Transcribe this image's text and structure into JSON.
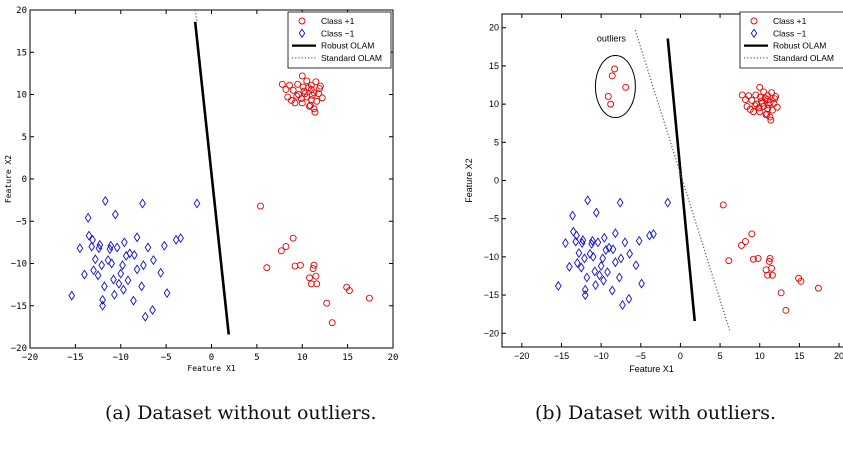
{
  "captions": {
    "a": "(a) Dataset without outliers.",
    "b": "(b) Dataset with outliers."
  },
  "chart_data": [
    {
      "type": "scatter",
      "title": "",
      "xlabel": "Feature X1",
      "ylabel": "Feature X2",
      "xlim": [
        -20,
        20
      ],
      "ylim": [
        -20,
        20
      ],
      "xticks": [
        -20,
        -15,
        -10,
        -5,
        0,
        5,
        10,
        15,
        20
      ],
      "yticks": [
        -20,
        -15,
        -10,
        -5,
        0,
        5,
        10,
        15,
        20
      ],
      "grid": false,
      "legend_position": "top-right",
      "colors": {
        "pos": "#e00000",
        "neg": "#1010cc",
        "line": "#000000",
        "dotted": "#777777"
      },
      "series": [
        {
          "name": "Class +1",
          "marker": "circle",
          "color": "#e00000",
          "points": [
            [
              9.5,
              11.2
            ],
            [
              10,
              12.2
            ],
            [
              10.5,
              11.6
            ],
            [
              11,
              11.1
            ],
            [
              11.5,
              11.5
            ],
            [
              12,
              11
            ],
            [
              9,
              10.5
            ],
            [
              10.2,
              10.4
            ],
            [
              10.7,
              10.8
            ],
            [
              11.3,
              10.2
            ],
            [
              11.8,
              10.1
            ],
            [
              9.4,
              9.8
            ],
            [
              9.9,
              9.5
            ],
            [
              10.5,
              9.7
            ],
            [
              11,
              9.4
            ],
            [
              11.6,
              9.2
            ],
            [
              9.2,
              9
            ],
            [
              10,
              9
            ],
            [
              10.8,
              8.6
            ],
            [
              11.3,
              8.3
            ],
            [
              8.2,
              10.6
            ],
            [
              8.6,
              11.1
            ],
            [
              12.2,
              9.6
            ],
            [
              9.6,
              10
            ],
            [
              10.3,
              10.1
            ],
            [
              11.1,
              9.9
            ],
            [
              8.8,
              9.3
            ],
            [
              11.4,
              7.9
            ],
            [
              10.9,
              8.7
            ],
            [
              11.9,
              10.7
            ],
            [
              10.1,
              10.9
            ],
            [
              11,
              10.6
            ],
            [
              7.8,
              11.2
            ],
            [
              8.4,
              9.7
            ],
            [
              5.4,
              -3.2
            ],
            [
              6.1,
              -10.5
            ],
            [
              7.7,
              -8.5
            ],
            [
              8.2,
              -8
            ],
            [
              9,
              -7
            ],
            [
              9.2,
              -10.3
            ],
            [
              9.8,
              -10.2
            ],
            [
              10.8,
              -11.7
            ],
            [
              11.3,
              -10.2
            ],
            [
              11.5,
              -11.5
            ],
            [
              11.6,
              -12.4
            ],
            [
              11,
              -12.4
            ],
            [
              11.2,
              -10.6
            ],
            [
              12.7,
              -14.7
            ],
            [
              13.3,
              -17
            ],
            [
              14.9,
              -12.8
            ],
            [
              15.2,
              -13.2
            ],
            [
              17.4,
              -14.1
            ]
          ]
        },
        {
          "name": "Class −1",
          "marker": "diamond",
          "color": "#1010cc",
          "points": [
            [
              -15.4,
              -13.8
            ],
            [
              -14.5,
              -8.2
            ],
            [
              -14,
              -11.3
            ],
            [
              -13.5,
              -6.7
            ],
            [
              -13.6,
              -4.6
            ],
            [
              -13.2,
              -8
            ],
            [
              -13,
              -10.8
            ],
            [
              -12.8,
              -9.5
            ],
            [
              -12.5,
              -11.4
            ],
            [
              -12.4,
              -8.2
            ],
            [
              -12.1,
              -10.2
            ],
            [
              -12,
              -14.3
            ],
            [
              -12,
              -15
            ],
            [
              -11.8,
              -12.7
            ],
            [
              -11.7,
              -2.6
            ],
            [
              -11.4,
              -9.6
            ],
            [
              -11.1,
              -7.9
            ],
            [
              -11,
              -10
            ],
            [
              -10.7,
              -13.7
            ],
            [
              -10.4,
              -8.1
            ],
            [
              -10.6,
              -4.2
            ],
            [
              -10.2,
              -12.4
            ],
            [
              -10,
              -11.2
            ],
            [
              -9.8,
              -10.2
            ],
            [
              -9.7,
              -13.1
            ],
            [
              -9.4,
              -9.1
            ],
            [
              -9.2,
              -12
            ],
            [
              -9,
              -8.8
            ],
            [
              -8.6,
              -14.4
            ],
            [
              -8.5,
              -9
            ],
            [
              -8.2,
              -10.7
            ],
            [
              -8.2,
              -6.9
            ],
            [
              -7.7,
              -12.7
            ],
            [
              -7.5,
              -10.2
            ],
            [
              -7.6,
              -2.9
            ],
            [
              -7.3,
              -16.3
            ],
            [
              -7,
              -8.1
            ],
            [
              -6.5,
              -15.5
            ],
            [
              -6.4,
              -9.6
            ],
            [
              -5.6,
              -11.1
            ],
            [
              -5.2,
              -7.9
            ],
            [
              -4.9,
              -13.5
            ],
            [
              -3.9,
              -7.2
            ],
            [
              -3.4,
              -7
            ],
            [
              -1.6,
              -2.9
            ],
            [
              -12.3,
              -7.8
            ],
            [
              -11.2,
              -8.3
            ],
            [
              -13.1,
              -7.2
            ],
            [
              -9.6,
              -7.5
            ],
            [
              -10.8,
              -11.9
            ]
          ]
        }
      ],
      "lines": [
        {
          "name": "Robust OLAM",
          "style": "solid",
          "x": [
            -1.8,
            1.9
          ],
          "y": [
            18.6,
            -18.4
          ]
        },
        {
          "name": "Standard OLAM",
          "style": "dotted",
          "x": [
            -1.8,
            -1.6
          ],
          "y": [
            20,
            18.6
          ]
        }
      ]
    },
    {
      "type": "scatter",
      "title": "",
      "xlabel": "Feature X1",
      "ylabel": "Feature X2",
      "xlim": [
        -22.5,
        20.5
      ],
      "ylim": [
        -21.8,
        21.8
      ],
      "xticks": [
        -20,
        -15,
        -10,
        -5,
        0,
        5,
        10,
        15,
        20
      ],
      "yticks": [
        -20,
        -15,
        -10,
        -5,
        0,
        5,
        10,
        15,
        20
      ],
      "grid": false,
      "legend_position": "top-right",
      "annotation": "outliers",
      "series": [
        {
          "name": "Class +1",
          "marker": "circle",
          "color": "#e00000",
          "points": [
            [
              9.5,
              11.2
            ],
            [
              10,
              12.2
            ],
            [
              10.5,
              11.6
            ],
            [
              11,
              11.1
            ],
            [
              11.5,
              11.5
            ],
            [
              12,
              11
            ],
            [
              9,
              10.5
            ],
            [
              10.2,
              10.4
            ],
            [
              10.7,
              10.8
            ],
            [
              11.3,
              10.2
            ],
            [
              11.8,
              10.1
            ],
            [
              9.4,
              9.8
            ],
            [
              9.9,
              9.5
            ],
            [
              10.5,
              9.7
            ],
            [
              11,
              9.4
            ],
            [
              11.6,
              9.2
            ],
            [
              9.2,
              9
            ],
            [
              10,
              9
            ],
            [
              10.8,
              8.6
            ],
            [
              11.3,
              8.3
            ],
            [
              8.2,
              10.6
            ],
            [
              8.6,
              11.1
            ],
            [
              12.2,
              9.6
            ],
            [
              9.6,
              10
            ],
            [
              10.3,
              10.1
            ],
            [
              11.1,
              9.9
            ],
            [
              8.8,
              9.3
            ],
            [
              11.4,
              7.9
            ],
            [
              10.9,
              8.7
            ],
            [
              11.9,
              10.7
            ],
            [
              10.1,
              10.9
            ],
            [
              11,
              10.6
            ],
            [
              7.8,
              11.2
            ],
            [
              8.4,
              9.7
            ],
            [
              5.4,
              -3.2
            ],
            [
              6.1,
              -10.5
            ],
            [
              7.7,
              -8.5
            ],
            [
              8.2,
              -8
            ],
            [
              9,
              -7
            ],
            [
              9.2,
              -10.3
            ],
            [
              9.8,
              -10.2
            ],
            [
              10.8,
              -11.7
            ],
            [
              11.3,
              -10.2
            ],
            [
              11.5,
              -11.5
            ],
            [
              11.6,
              -12.4
            ],
            [
              11,
              -12.4
            ],
            [
              11.2,
              -10.6
            ],
            [
              12.7,
              -14.7
            ],
            [
              13.3,
              -17
            ],
            [
              14.9,
              -12.8
            ],
            [
              15.2,
              -13.2
            ],
            [
              17.4,
              -14.1
            ],
            [
              -8.3,
              14.6
            ],
            [
              -8.6,
              13.7
            ],
            [
              -6.9,
              12.2
            ],
            [
              -9.1,
              11
            ],
            [
              -8.8,
              10
            ]
          ]
        },
        {
          "name": "Class −1",
          "marker": "diamond",
          "color": "#1010cc",
          "points": [
            [
              -15.4,
              -13.8
            ],
            [
              -14.5,
              -8.2
            ],
            [
              -14,
              -11.3
            ],
            [
              -13.5,
              -6.7
            ],
            [
              -13.6,
              -4.6
            ],
            [
              -13.2,
              -8
            ],
            [
              -13,
              -10.8
            ],
            [
              -12.8,
              -9.5
            ],
            [
              -12.5,
              -11.4
            ],
            [
              -12.4,
              -8.2
            ],
            [
              -12.1,
              -10.2
            ],
            [
              -12,
              -14.3
            ],
            [
              -12,
              -15
            ],
            [
              -11.8,
              -12.7
            ],
            [
              -11.7,
              -2.6
            ],
            [
              -11.4,
              -9.6
            ],
            [
              -11.1,
              -7.9
            ],
            [
              -11,
              -10
            ],
            [
              -10.7,
              -13.7
            ],
            [
              -10.4,
              -8.1
            ],
            [
              -10.6,
              -4.2
            ],
            [
              -10.2,
              -12.4
            ],
            [
              -10,
              -11.2
            ],
            [
              -9.8,
              -10.2
            ],
            [
              -9.7,
              -13.1
            ],
            [
              -9.4,
              -9.1
            ],
            [
              -9.2,
              -12
            ],
            [
              -9,
              -8.8
            ],
            [
              -8.6,
              -14.4
            ],
            [
              -8.5,
              -9
            ],
            [
              -8.2,
              -10.7
            ],
            [
              -8.2,
              -6.9
            ],
            [
              -7.7,
              -12.7
            ],
            [
              -7.5,
              -10.2
            ],
            [
              -7.6,
              -2.9
            ],
            [
              -7.3,
              -16.3
            ],
            [
              -7,
              -8.1
            ],
            [
              -6.5,
              -15.5
            ],
            [
              -6.4,
              -9.6
            ],
            [
              -5.6,
              -11.1
            ],
            [
              -5.2,
              -7.9
            ],
            [
              -4.9,
              -13.5
            ],
            [
              -3.9,
              -7.2
            ],
            [
              -3.4,
              -7
            ],
            [
              -1.6,
              -2.9
            ],
            [
              -12.3,
              -7.8
            ],
            [
              -11.2,
              -8.3
            ],
            [
              -13.1,
              -7.2
            ],
            [
              -9.6,
              -7.5
            ],
            [
              -10.8,
              -11.9
            ]
          ]
        }
      ],
      "lines": [
        {
          "name": "Robust OLAM",
          "style": "solid",
          "x": [
            -1.6,
            1.8
          ],
          "y": [
            18.6,
            -18.4
          ]
        },
        {
          "name": "Standard OLAM",
          "style": "dotted",
          "x": [
            -5.7,
            6.2
          ],
          "y": [
            19.7,
            -19.6
          ]
        }
      ]
    }
  ]
}
